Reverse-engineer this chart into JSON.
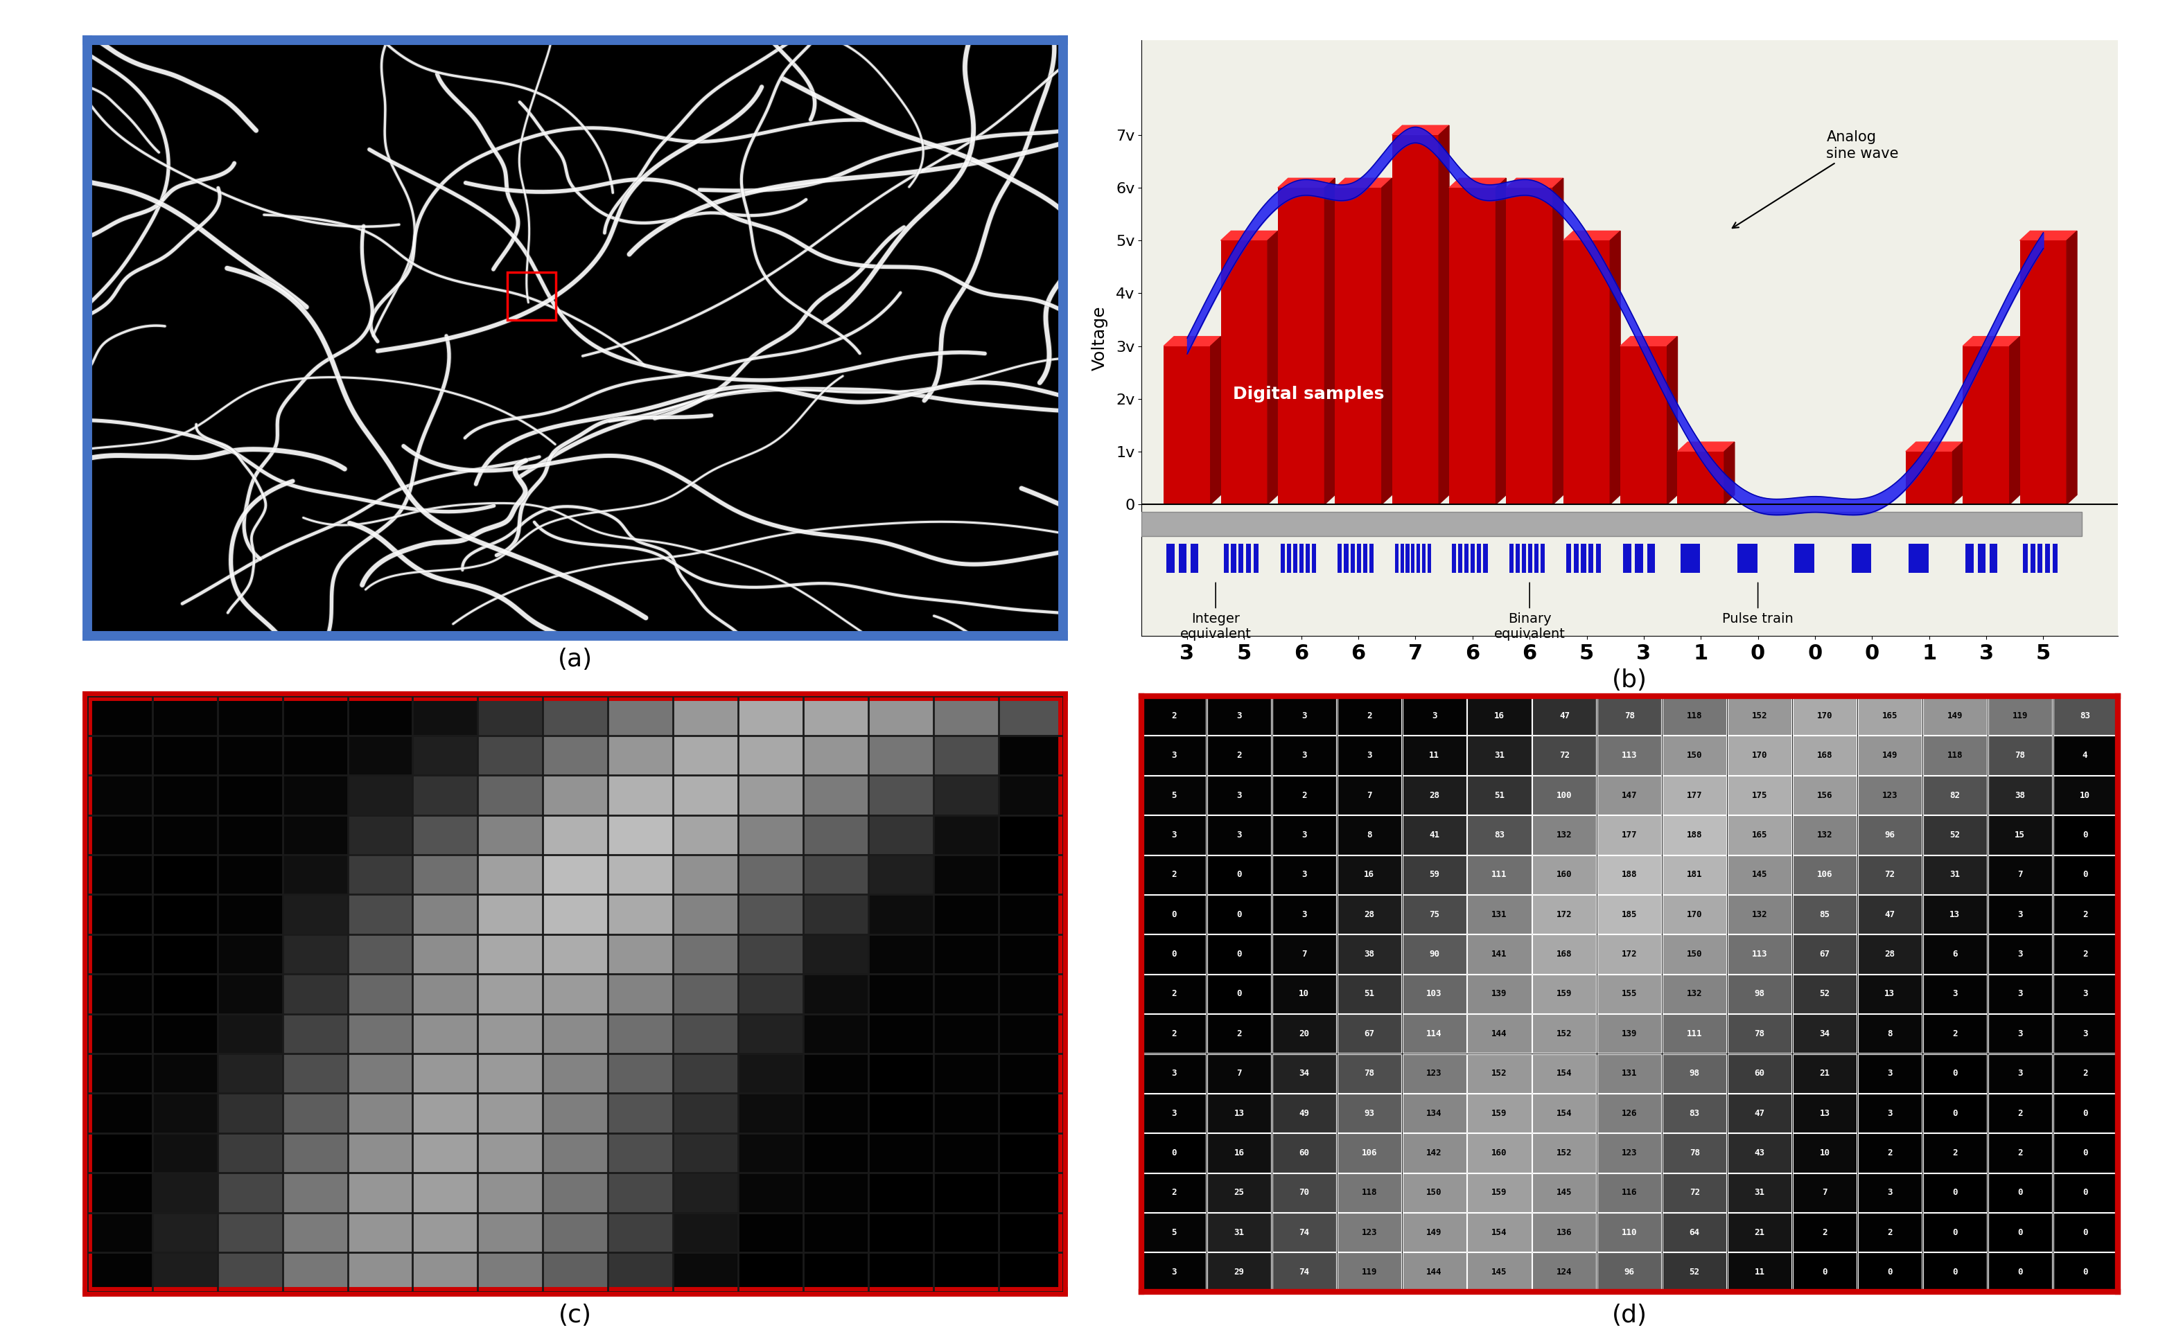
{
  "fig_width": 31.5,
  "fig_height": 19.23,
  "bg_color": "#ffffff",
  "panel_labels": [
    "(a)",
    "(b)",
    "(c)",
    "(d)"
  ],
  "panel_label_fontsize": 26,
  "panel_a": {
    "border_color": "#4472C4",
    "border_width": 10
  },
  "panel_b": {
    "voltage_labels": [
      "0",
      "1v",
      "2v",
      "3v",
      "4v",
      "5v",
      "6v",
      "7v"
    ],
    "digital_values": [
      3,
      5,
      6,
      6,
      7,
      6,
      6,
      5,
      3,
      1,
      0,
      0,
      0,
      1,
      3,
      5
    ],
    "ylabel": "Voltage",
    "label_digital": "Digital samples",
    "label_analog": "Analog\nsine wave",
    "label_integer": "Integer\nequivalent",
    "label_binary": "Binary\nequivalent",
    "label_pulse": "Pulse train",
    "bar_color": "#CC0000",
    "bar_dark_color": "#880000",
    "wave_color": "#1a1aee",
    "bg_color": "#f0f0e8"
  },
  "panel_c": {
    "border_color": "#CC0000",
    "border_width": 10
  },
  "panel_d": {
    "border_color": "#CC0000",
    "border_width": 6,
    "values": [
      [
        2,
        3,
        3,
        2,
        3,
        16,
        47,
        78,
        118,
        152,
        170,
        165,
        149,
        119,
        83
      ],
      [
        3,
        2,
        3,
        3,
        11,
        31,
        72,
        113,
        150,
        170,
        168,
        149,
        118,
        78,
        4
      ],
      [
        5,
        3,
        2,
        7,
        28,
        51,
        100,
        147,
        177,
        175,
        156,
        123,
        82,
        38,
        10
      ],
      [
        3,
        3,
        3,
        8,
        41,
        83,
        132,
        177,
        188,
        165,
        132,
        96,
        52,
        15,
        0
      ],
      [
        2,
        0,
        3,
        16,
        59,
        111,
        160,
        188,
        181,
        145,
        106,
        72,
        31,
        7,
        0
      ],
      [
        0,
        0,
        3,
        28,
        75,
        131,
        172,
        185,
        170,
        132,
        85,
        47,
        13,
        3,
        2
      ],
      [
        0,
        0,
        7,
        38,
        90,
        141,
        168,
        172,
        150,
        113,
        67,
        28,
        6,
        3,
        2
      ],
      [
        2,
        0,
        10,
        51,
        103,
        139,
        159,
        155,
        132,
        98,
        52,
        13,
        3,
        3,
        3
      ],
      [
        2,
        2,
        20,
        67,
        114,
        144,
        152,
        139,
        111,
        78,
        34,
        8,
        2,
        3,
        3
      ],
      [
        3,
        7,
        34,
        78,
        123,
        152,
        154,
        131,
        98,
        60,
        21,
        3,
        0,
        3,
        2
      ],
      [
        3,
        13,
        49,
        93,
        134,
        159,
        154,
        126,
        83,
        47,
        13,
        3,
        0,
        2,
        0
      ],
      [
        0,
        16,
        60,
        106,
        142,
        160,
        152,
        123,
        78,
        43,
        10,
        2,
        2,
        2,
        0
      ],
      [
        2,
        25,
        70,
        118,
        150,
        159,
        145,
        116,
        72,
        31,
        7,
        3,
        0,
        0,
        0
      ],
      [
        5,
        31,
        74,
        123,
        149,
        154,
        136,
        110,
        64,
        21,
        2,
        2,
        0,
        0,
        0
      ],
      [
        3,
        29,
        74,
        119,
        144,
        145,
        124,
        96,
        52,
        11,
        0,
        0,
        0,
        0,
        0
      ]
    ]
  }
}
